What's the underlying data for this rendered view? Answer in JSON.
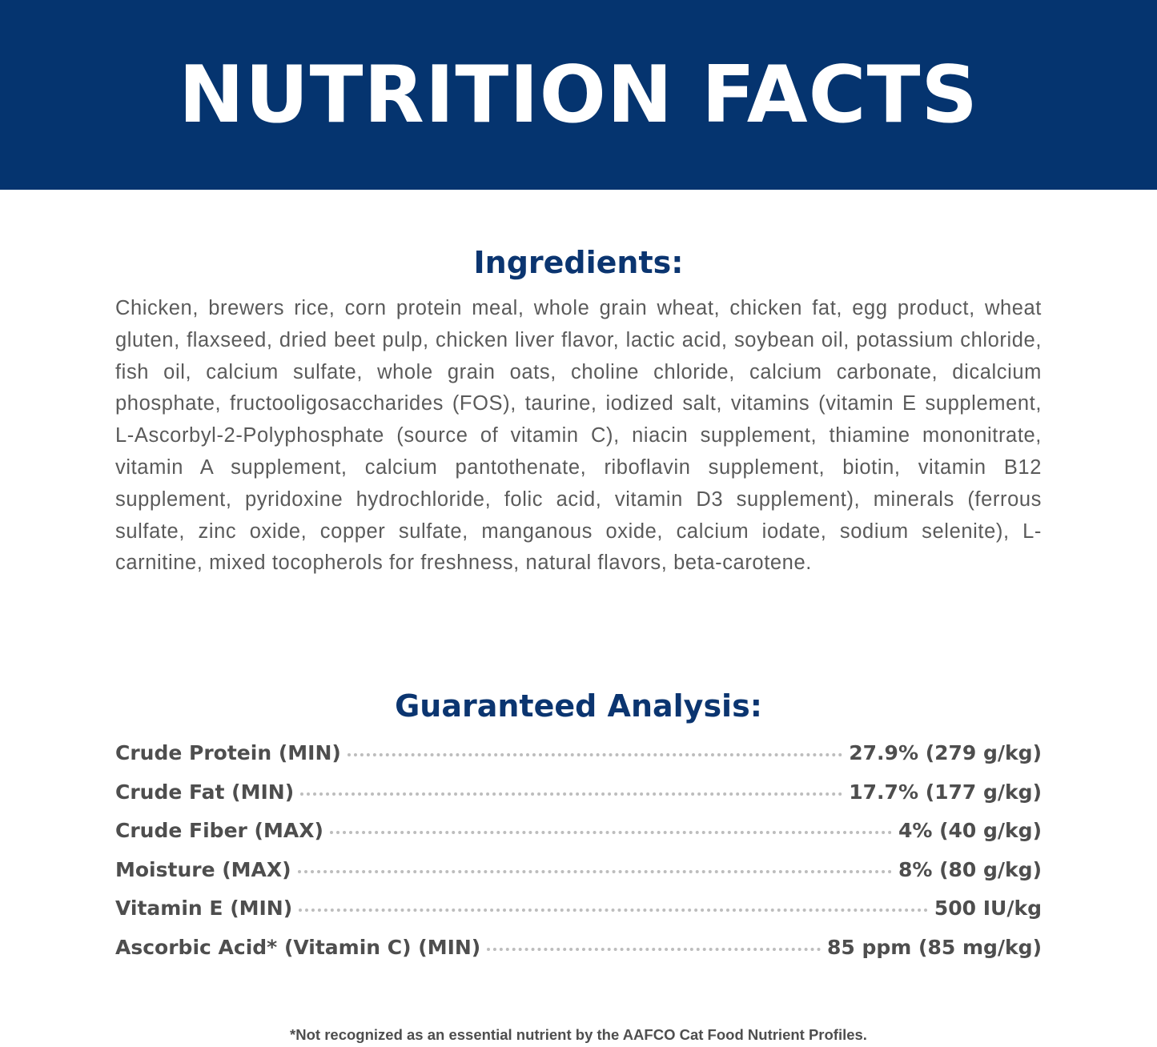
{
  "banner": {
    "title": "NUTRITION FACTS",
    "color": "#05346f"
  },
  "ingredients": {
    "heading": "Ingredients:",
    "text": "Chicken, brewers rice, corn protein meal, whole grain wheat, chicken fat, egg product, wheat gluten, flaxseed, dried beet pulp, chicken liver flavor, lactic acid, soybean oil, potassium chloride, fish oil, calcium sulfate, whole grain oats, choline chloride, calcium carbonate, dicalcium phosphate, fructooligosaccharides (FOS), taurine, iodized salt, vitamins (vitamin E supplement, L-Ascorbyl-2-Polyphosphate (source of vitamin C), niacin supplement, thiamine mononitrate, vitamin A supplement, calcium pantothenate, riboflavin supplement, biotin, vitamin B12 supplement, pyridoxine hydrochloride, folic acid, vitamin D3 supplement), minerals (ferrous sulfate, zinc oxide, copper sulfate, manganous oxide, calcium iodate, sodium selenite), L-carnitine, mixed tocopherols for freshness, natural flavors, beta-carotene."
  },
  "analysis": {
    "heading": "Guaranteed Analysis:",
    "rows": [
      {
        "label": "Crude Protein (MIN)",
        "value": "27.9% (279 g/kg)"
      },
      {
        "label": "Crude Fat (MIN)",
        "value": "17.7% (177 g/kg)"
      },
      {
        "label": "Crude Fiber (MAX)",
        "value": "4% (40 g/kg)"
      },
      {
        "label": "Moisture (MAX)",
        "value": "8% (80 g/kg)"
      },
      {
        "label": "Vitamin E (MIN)",
        "value": "500 IU/kg"
      },
      {
        "label": "Ascorbic Acid* (Vitamin C) (MIN)",
        "value": "85 ppm (85 mg/kg)"
      }
    ]
  },
  "footnote": "*Not recognized as an essential nutrient by the AAFCO Cat Food Nutrient Profiles."
}
